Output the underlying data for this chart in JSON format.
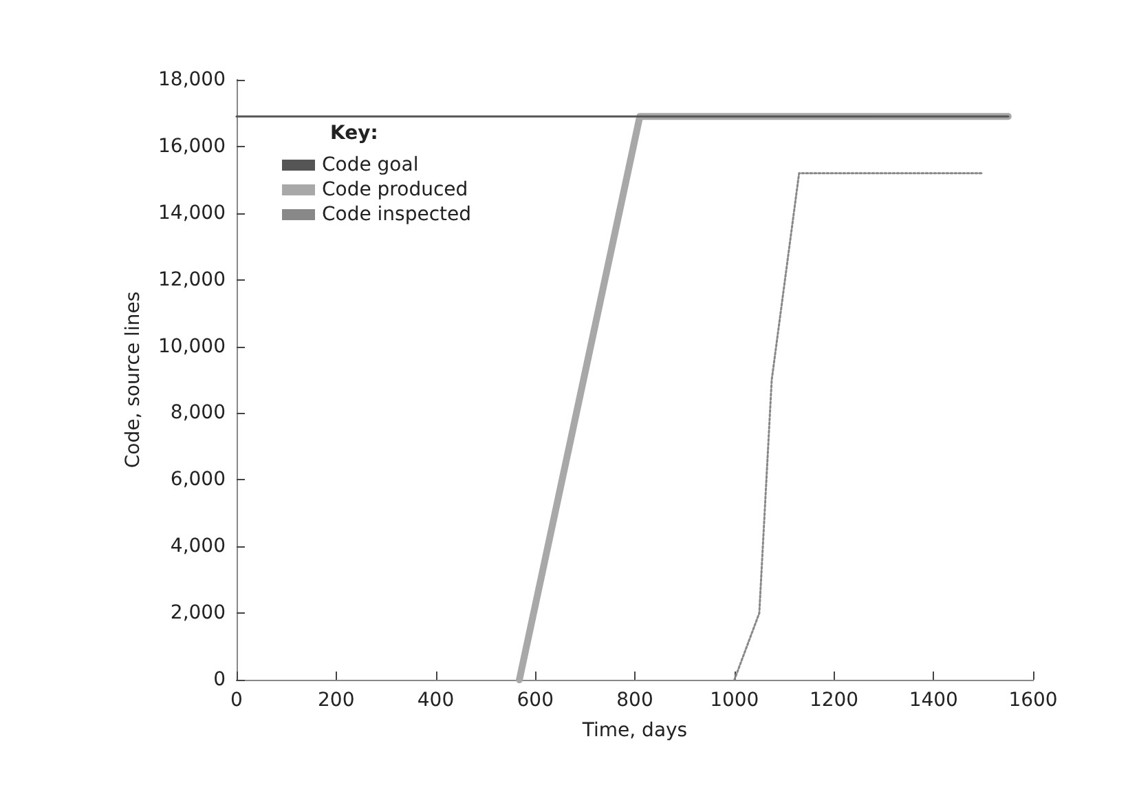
{
  "chart_data": {
    "type": "line",
    "xlabel": "Time, days",
    "ylabel": "Code, source lines",
    "legend_title": "Key:",
    "legend": "top left",
    "grid": false,
    "marker": "none",
    "line_style": "solid",
    "xlim": [
      0,
      1600
    ],
    "xticks": [
      0,
      200,
      400,
      600,
      800,
      1000,
      1200,
      1400,
      1600
    ],
    "ylim": [
      0,
      18000
    ],
    "yticks": [
      {
        "value": 0,
        "label": "0"
      },
      {
        "value": 2000,
        "label": "2,000"
      },
      {
        "value": 4000,
        "label": "4,000"
      },
      {
        "value": 6000,
        "label": "6,000"
      },
      {
        "value": 8000,
        "label": "8,000"
      },
      {
        "value": 10000,
        "label": "10,000"
      },
      {
        "value": 12000,
        "label": "12,000"
      },
      {
        "value": 14000,
        "label": "14,000"
      },
      {
        "value": 16000,
        "label": "16,000"
      },
      {
        "value": 18000,
        "label": "18,000"
      }
    ],
    "series": [
      {
        "name": "Code goal",
        "color": "#555555",
        "x": [
          0,
          1550
        ],
        "values": [
          16900,
          16900
        ]
      },
      {
        "name": "Code produced",
        "color": "#a8a8a8",
        "x": [
          568,
          810,
          1550
        ],
        "values": [
          0,
          16900,
          16900
        ]
      },
      {
        "name": "Code inspected",
        "color": "#888888",
        "line_style": "dotted",
        "x": [
          1000,
          1050,
          1075,
          1130,
          1500
        ],
        "values": [
          0,
          2000,
          9000,
          15200,
          15200
        ]
      }
    ]
  }
}
